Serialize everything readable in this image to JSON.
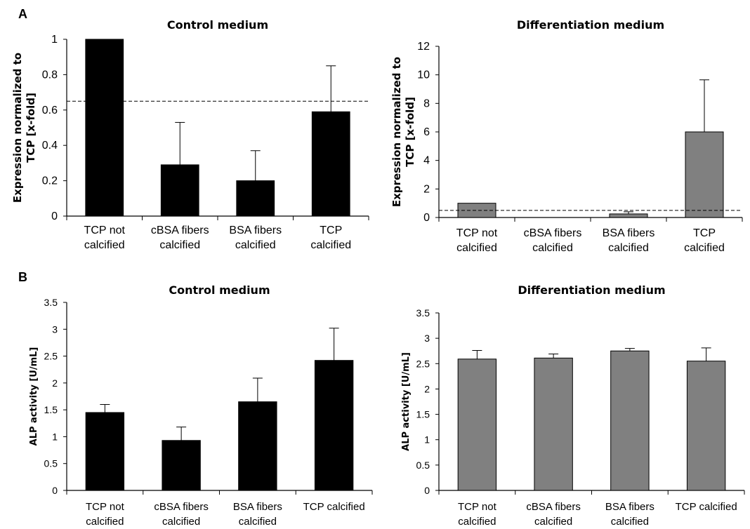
{
  "panels": [
    {
      "label": "A"
    },
    {
      "label": "B"
    }
  ],
  "chart_data": [
    {
      "id": "a-control",
      "panel": "A",
      "type": "bar",
      "title": "Control medium",
      "ylabel": "Expression normalized to\nTCP [x-fold]",
      "categories": [
        "TCP not\ncalcified",
        "cBSA fibers\ncalcified",
        "BSA fibers\ncalcified",
        "TCP\ncalcified"
      ],
      "values": [
        1.0,
        0.29,
        0.2,
        0.59
      ],
      "error": [
        0,
        0.24,
        0.17,
        0.26
      ],
      "ylim": [
        0,
        1
      ],
      "yticks": [
        "0",
        "0.2",
        "0.4",
        "0.6",
        "0.8",
        "1"
      ],
      "reference_line": 0.65,
      "bar_color": "#000000"
    },
    {
      "id": "a-diff",
      "panel": "A",
      "type": "bar",
      "title": "Differentiation medium",
      "ylabel": "Expression normalized to\nTCP [x-fold]",
      "categories": [
        "TCP not\ncalcified",
        "cBSA fibers\ncalcified",
        "BSA fibers\ncalcified",
        "TCP\ncalcified"
      ],
      "values": [
        1.0,
        0,
        0.25,
        6.0
      ],
      "error": [
        0,
        0,
        0.15,
        3.65
      ],
      "ylim": [
        0,
        12
      ],
      "yticks": [
        "0",
        "2",
        "4",
        "6",
        "8",
        "10",
        "12"
      ],
      "reference_line": 0.5,
      "bar_color": "#808080"
    },
    {
      "id": "b-control",
      "panel": "B",
      "type": "bar",
      "title": "Control medium",
      "ylabel": "ALP activity [U/mL]",
      "categories": [
        "TCP not\ncalcified",
        "cBSA fibers\ncalcified",
        "BSA fibers\ncalcified",
        "TCP calcified"
      ],
      "values": [
        1.45,
        0.93,
        1.65,
        2.42
      ],
      "error": [
        0.15,
        0.25,
        0.44,
        0.6
      ],
      "ylim": [
        0,
        3.5
      ],
      "yticks": [
        "0",
        "0.5",
        "1",
        "1.5",
        "2",
        "2.5",
        "3",
        "3.5"
      ],
      "bar_color": "#000000"
    },
    {
      "id": "b-diff",
      "panel": "B",
      "type": "bar",
      "title": "Differentiation medium",
      "ylabel": "ALP activity [U/mL]",
      "categories": [
        "TCP not\ncalcified",
        "cBSA fibers\ncalcified",
        "BSA fibers\ncalcified",
        "TCP calcified"
      ],
      "values": [
        2.59,
        2.61,
        2.75,
        2.55
      ],
      "error": [
        0.17,
        0.08,
        0.05,
        0.26
      ],
      "ylim": [
        0,
        3.5
      ],
      "yticks": [
        "0",
        "0.5",
        "1",
        "1.5",
        "2",
        "2.5",
        "3",
        "3.5"
      ],
      "bar_color": "#808080"
    }
  ]
}
